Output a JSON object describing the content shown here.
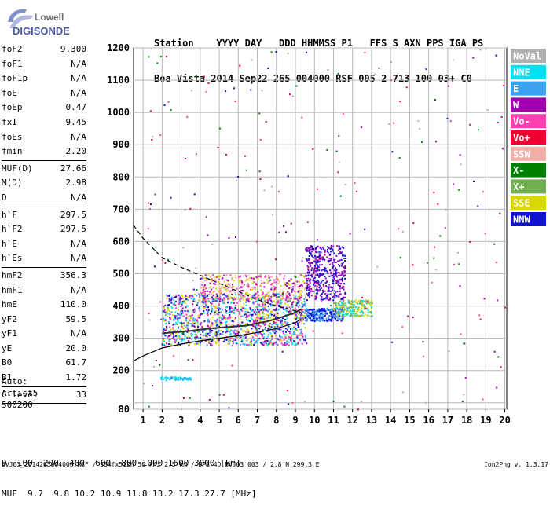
{
  "logo": {
    "line1": "Lowell",
    "line2": "DIGISONDE"
  },
  "header": {
    "labels": [
      "Station",
      "YYYY",
      "DAY",
      "DDD",
      "HHMMSS",
      "P1",
      "FFS",
      "S",
      "AXN",
      "PPS",
      "IGA",
      "PS"
    ],
    "values": [
      "Boa Vista",
      "2014",
      "Sep22",
      "265",
      "004000",
      "RSF",
      "005",
      "2",
      "713",
      "100",
      "03+",
      "C0"
    ]
  },
  "params": {
    "group1": [
      {
        "name": "foF2",
        "value": "9.300"
      },
      {
        "name": "foF1",
        "value": "N/A"
      },
      {
        "name": "foF1p",
        "value": "N/A"
      },
      {
        "name": "foE",
        "value": "N/A"
      },
      {
        "name": "foEp",
        "value": "0.47"
      },
      {
        "name": "fxI",
        "value": "9.45"
      },
      {
        "name": "foEs",
        "value": "N/A"
      },
      {
        "name": "fmin",
        "value": "2.20"
      }
    ],
    "group2": [
      {
        "name": "MUF(D)",
        "value": "27.66"
      },
      {
        "name": "M(D)",
        "value": "2.98"
      },
      {
        "name": "D",
        "value": "N/A"
      }
    ],
    "group3": [
      {
        "name": "h`F",
        "value": "297.5"
      },
      {
        "name": "h`F2",
        "value": "297.5"
      },
      {
        "name": "h`E",
        "value": "N/A"
      },
      {
        "name": "h`Es",
        "value": "N/A"
      }
    ],
    "group4": [
      {
        "name": "hmF2",
        "value": "356.3"
      },
      {
        "name": "hmF1",
        "value": "N/A"
      },
      {
        "name": "hmE",
        "value": "110.0"
      },
      {
        "name": "yF2",
        "value": "59.5"
      },
      {
        "name": "yF1",
        "value": "N/A"
      },
      {
        "name": "yE",
        "value": "20.0"
      },
      {
        "name": "B0",
        "value": "61.7"
      },
      {
        "name": "B1",
        "value": "1.72"
      }
    ],
    "group5": [
      {
        "name": "C-level",
        "value": "33"
      }
    ]
  },
  "auto": {
    "line1": "Auto:",
    "line2": "Artist5",
    "line3": "500200"
  },
  "muf_table": {
    "d_label": "D",
    "d_values": "  100  200  400  600  800 1000 1500 3000 [km]",
    "muf_label": "MUF",
    "muf_values": "  9.7  9.8 10.2 10.9 11.8 13.2 17.3 27.7 [MHz]"
  },
  "footer": {
    "left": "BVJ03_2014265004000.RSF / 384fx512h 50 kHz 2.5 km / DPS-4D BVJ03 003 / 2.8 N 299.3 E",
    "right": "Ion2Png v. 1.3.17"
  },
  "legend": [
    {
      "label": "NoVal",
      "color": "#b0b0b0"
    },
    {
      "label": "NNE",
      "color": "#00e0f0"
    },
    {
      "label": "E",
      "color": "#3aa0f0"
    },
    {
      "label": "W",
      "color": "#a000b0"
    },
    {
      "label": "Vo-",
      "color": "#ff40b0"
    },
    {
      "label": "Vo+",
      "color": "#f00030"
    },
    {
      "label": "SSW",
      "color": "#f0b0a8"
    },
    {
      "label": "X-",
      "color": "#008000"
    },
    {
      "label": "X+",
      "color": "#70b050"
    },
    {
      "label": "SSE",
      "color": "#d8d800"
    },
    {
      "label": "NNW",
      "color": "#1010d0"
    }
  ],
  "chart_data": {
    "type": "scatter",
    "title": "",
    "xlabel": "",
    "ylabel": "",
    "xlim": [
      0.5,
      20.1
    ],
    "ylim": [
      80,
      1200
    ],
    "x_ticks": [
      1,
      2,
      3,
      4,
      5,
      6,
      7,
      8,
      9,
      10,
      11,
      12,
      13,
      14,
      15,
      16,
      17,
      18,
      19,
      20
    ],
    "y_ticks": [
      80,
      100,
      200,
      300,
      400,
      500,
      600,
      700,
      800,
      900,
      1000,
      1100,
      1200
    ],
    "y_tick_labels": [
      80,
      200,
      300,
      400,
      500,
      600,
      700,
      800,
      900,
      1000,
      1100,
      1200
    ],
    "grid": true,
    "legend_position": "right",
    "clusters": [
      {
        "x": [
          2,
          9.5
        ],
        "y": [
          280,
          440
        ],
        "n": 1400,
        "colors": [
          "#1010d0",
          "#00e0f0",
          "#a000b0",
          "#ff40b0",
          "#3aa0f0",
          "#d8d800"
        ]
      },
      {
        "x": [
          4,
          9.5
        ],
        "y": [
          420,
          500
        ],
        "n": 350,
        "colors": [
          "#a000b0",
          "#ff40b0",
          "#d8d800",
          "#f0b0a8"
        ]
      },
      {
        "x": [
          9.5,
          11.6
        ],
        "y": [
          420,
          590
        ],
        "n": 450,
        "colors": [
          "#a000b0",
          "#1010d0"
        ]
      },
      {
        "x": [
          9.5,
          11.5
        ],
        "y": [
          355,
          395
        ],
        "n": 260,
        "colors": [
          "#1010d0",
          "#3aa0f0"
        ]
      },
      {
        "x": [
          11,
          13
        ],
        "y": [
          370,
          420
        ],
        "n": 200,
        "colors": [
          "#00e0f0",
          "#d8d800",
          "#70b050"
        ]
      },
      {
        "x": [
          1.9,
          3.5
        ],
        "y": [
          172,
          182
        ],
        "n": 60,
        "colors": [
          "#00e0f0",
          "#3aa0f0"
        ]
      },
      {
        "x": [
          1,
          20
        ],
        "y": [
          80,
          1200
        ],
        "n": 260,
        "colors": [
          "#ff40b0",
          "#008000",
          "#a000b0",
          "#1010d0",
          "#b0b0b0",
          "#f00030"
        ]
      }
    ],
    "series": [
      {
        "name": "trace",
        "x": [
          2.0,
          2.5,
          3.0,
          3.5,
          4.0,
          4.5,
          5.0,
          5.5,
          6.0,
          6.5,
          7.0,
          7.5,
          8.0,
          8.5,
          9.0,
          9.3
        ],
        "y": [
          315,
          318,
          320,
          323,
          327,
          330,
          333,
          335,
          337,
          340,
          347,
          352,
          360,
          370,
          380,
          390
        ]
      },
      {
        "name": "profile",
        "x": [
          0.5,
          1.0,
          2.0,
          3.0,
          4.0,
          5.0,
          6.0,
          7.0,
          8.0,
          9.0,
          9.3
        ],
        "y": [
          230,
          245,
          270,
          282,
          292,
          300,
          308,
          318,
          330,
          348,
          360
        ]
      },
      {
        "name": "dashed",
        "x": [
          0.5,
          1.0,
          2.0,
          3.0,
          4.0,
          5.0,
          6.0,
          7.0,
          8.0,
          9.0,
          9.3
        ],
        "y": [
          650,
          610,
          550,
          520,
          495,
          470,
          445,
          420,
          400,
          385,
          380
        ]
      }
    ]
  }
}
